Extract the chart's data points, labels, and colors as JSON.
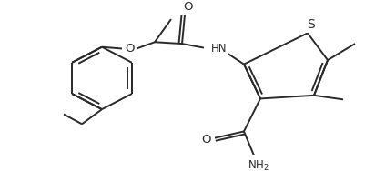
{
  "bg_color": "#ffffff",
  "line_color": "#2a2a2a",
  "line_width": 1.4,
  "font_size": 8.5,
  "figsize": [
    4.01,
    1.88
  ],
  "dpi": 100,
  "xlim": [
    0,
    401
  ],
  "ylim": [
    0,
    188
  ]
}
